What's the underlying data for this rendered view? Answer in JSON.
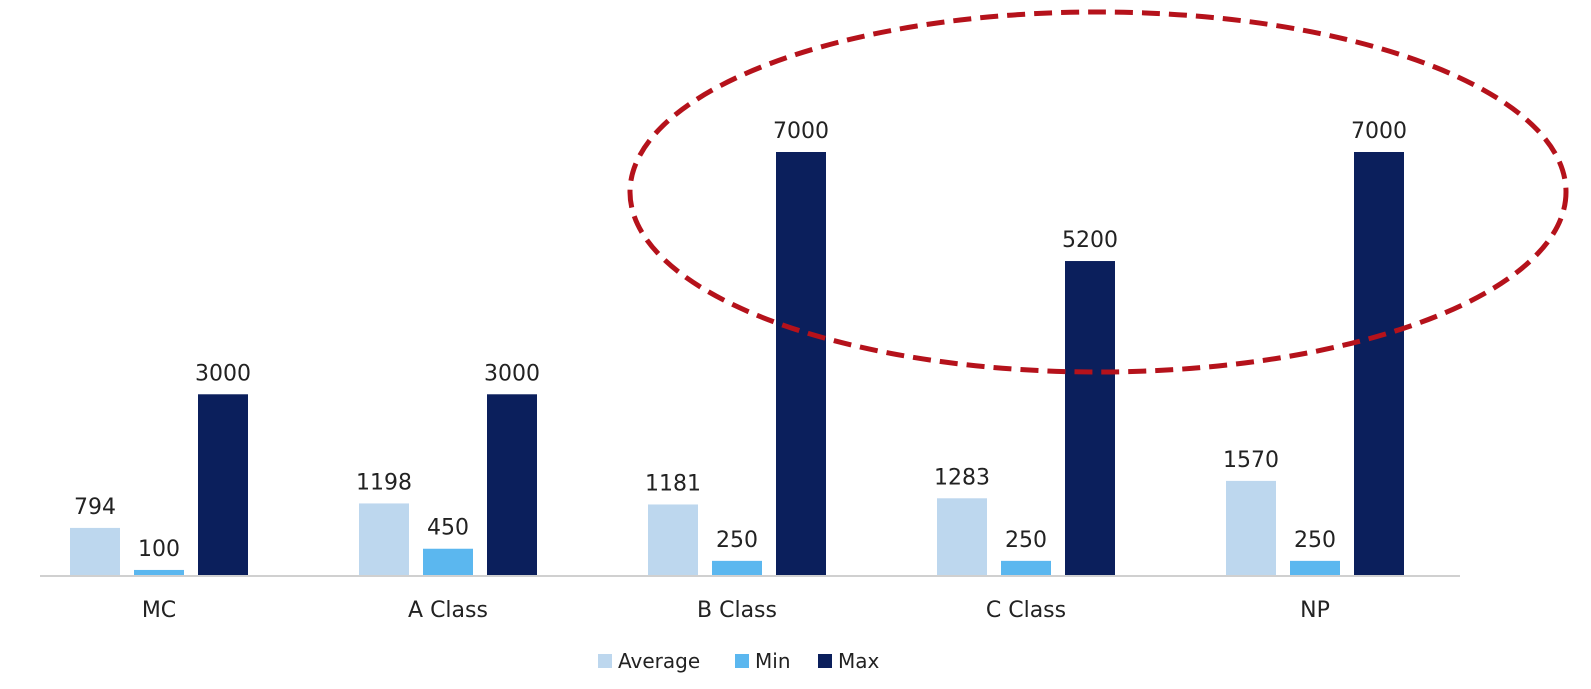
{
  "chart_data": {
    "type": "bar",
    "categories": [
      "MC",
      "A Class",
      "B Class",
      "C Class",
      "NP"
    ],
    "series": [
      {
        "name": "Average",
        "values": [
          794,
          1198,
          1181,
          1283,
          1570
        ],
        "color": "#BDD7EE"
      },
      {
        "name": "Min",
        "values": [
          100,
          450,
          250,
          250,
          250
        ],
        "color": "#5BB7EF"
      },
      {
        "name": "Max",
        "values": [
          3000,
          3000,
          7000,
          5200,
          7000
        ],
        "color": "#0B1F5C"
      }
    ],
    "title": "",
    "xlabel": "",
    "ylabel": "",
    "ylim": [
      0,
      7000
    ],
    "grid": false,
    "legend": "bottom",
    "data_labels": true,
    "annotation": {
      "shape": "dashed-ellipse",
      "color": "#B5121B",
      "highlights": [
        "B Class",
        "C Class",
        "NP"
      ],
      "series": "Max"
    }
  }
}
